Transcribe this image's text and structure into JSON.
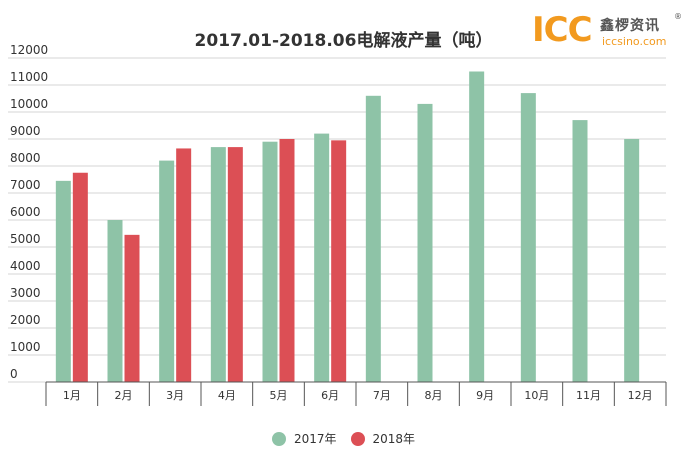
{
  "chart_data": {
    "type": "bar",
    "title": "2017.01-2018.06电解液产量（吨）",
    "categories": [
      "1月",
      "2月",
      "3月",
      "4月",
      "5月",
      "6月",
      "7月",
      "8月",
      "9月",
      "10月",
      "11月",
      "12月"
    ],
    "series": [
      {
        "name": "2017年",
        "color": "#8ec3a7",
        "values": [
          7450,
          6000,
          8200,
          8700,
          8900,
          9200,
          10600,
          10300,
          11500,
          10700,
          9700,
          9000
        ]
      },
      {
        "name": "2018年",
        "color": "#dc4f55",
        "values": [
          7750,
          5450,
          8650,
          8700,
          9000,
          8950,
          null,
          null,
          null,
          null,
          null,
          null
        ]
      }
    ],
    "ylim": [
      0,
      12000
    ],
    "yticks": [
      0,
      1000,
      2000,
      3000,
      4000,
      5000,
      6000,
      7000,
      8000,
      9000,
      10000,
      11000,
      12000
    ],
    "grid": true,
    "legend_position": "bottom"
  },
  "logo": {
    "mark": "ICC",
    "name": "鑫椤资讯",
    "registered": "®",
    "url": "iccsino.com"
  }
}
